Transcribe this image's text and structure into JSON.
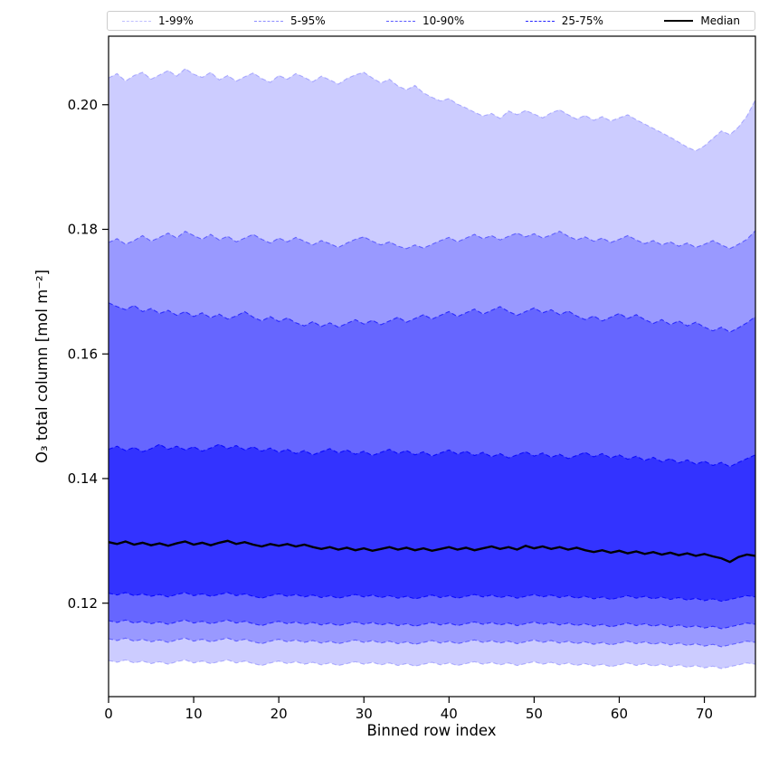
{
  "chart_data": {
    "type": "area",
    "title": "",
    "xlabel": "Binned row index",
    "ylabel": "O₃ total column [mol m⁻²]",
    "axes": {
      "x": {
        "lim": [
          0,
          76
        ],
        "ticks": [
          0,
          10,
          20,
          30,
          40,
          50,
          60,
          70
        ],
        "tick_labels": [
          "0",
          "10",
          "20",
          "30",
          "40",
          "50",
          "60",
          "70"
        ]
      },
      "y": {
        "lim": [
          0.105,
          0.211
        ],
        "ticks": [
          0.12,
          0.14,
          0.16,
          0.18,
          0.2
        ],
        "tick_labels": [
          "0.12",
          "0.14",
          "0.16",
          "0.18",
          "0.20"
        ]
      }
    },
    "legend": [
      {
        "label": "1-99%",
        "color": "rgba(0,0,255,0.25)",
        "dashed": true,
        "width": 1.2
      },
      {
        "label": "5-95%",
        "color": "rgba(0,0,255,0.45)",
        "dashed": true,
        "width": 1.2
      },
      {
        "label": "10-90%",
        "color": "rgba(0,0,255,0.65)",
        "dashed": true,
        "width": 1.2
      },
      {
        "label": "25-75%",
        "color": "rgba(0,0,255,0.85)",
        "dashed": true,
        "width": 1.2
      },
      {
        "label": "Median",
        "color": "#000000",
        "dashed": false,
        "width": 2.8
      }
    ],
    "bands": [
      {
        "name": "1-99%",
        "lower": "p01",
        "upper": "p99",
        "fill": "#ccccff",
        "edge": "rgba(0,0,255,0.25)"
      },
      {
        "name": "5-95%",
        "lower": "p05",
        "upper": "p95",
        "fill": "#9999ff",
        "edge": "rgba(0,0,255,0.45)"
      },
      {
        "name": "10-90%",
        "lower": "p10",
        "upper": "p90",
        "fill": "#6666ff",
        "edge": "rgba(0,0,255,0.65)"
      },
      {
        "name": "25-75%",
        "lower": "p25",
        "upper": "p75",
        "fill": "#3333ff",
        "edge": "rgba(0,0,255,0.85)"
      }
    ],
    "median": {
      "key": "p50",
      "color": "#000000",
      "width": 2.4
    },
    "series": {
      "x": [
        0,
        1,
        2,
        3,
        4,
        5,
        6,
        7,
        8,
        9,
        10,
        11,
        12,
        13,
        14,
        15,
        16,
        17,
        18,
        19,
        20,
        21,
        22,
        23,
        24,
        25,
        26,
        27,
        28,
        29,
        30,
        31,
        32,
        33,
        34,
        35,
        36,
        37,
        38,
        39,
        40,
        41,
        42,
        43,
        44,
        45,
        46,
        47,
        48,
        49,
        50,
        51,
        52,
        53,
        54,
        55,
        56,
        57,
        58,
        59,
        60,
        61,
        62,
        63,
        64,
        65,
        66,
        67,
        68,
        69,
        70,
        71,
        72,
        73,
        74,
        75,
        76
      ],
      "p99": [
        0.2043,
        0.205,
        0.2038,
        0.2047,
        0.2052,
        0.2041,
        0.2048,
        0.2055,
        0.2046,
        0.2058,
        0.2049,
        0.2044,
        0.2052,
        0.204,
        0.2047,
        0.2038,
        0.2045,
        0.2051,
        0.2042,
        0.2036,
        0.2047,
        0.2041,
        0.205,
        0.2044,
        0.2037,
        0.2046,
        0.204,
        0.2033,
        0.2042,
        0.2048,
        0.2052,
        0.2043,
        0.2035,
        0.2041,
        0.203,
        0.2024,
        0.2031,
        0.2019,
        0.2012,
        0.2006,
        0.201,
        0.2001,
        0.1995,
        0.1988,
        0.1982,
        0.1986,
        0.1978,
        0.199,
        0.1984,
        0.1991,
        0.1985,
        0.1979,
        0.1987,
        0.1992,
        0.1984,
        0.1977,
        0.1983,
        0.1975,
        0.1981,
        0.1974,
        0.1979,
        0.1984,
        0.1976,
        0.1969,
        0.1962,
        0.1955,
        0.1948,
        0.194,
        0.1932,
        0.1926,
        0.1934,
        0.1946,
        0.1958,
        0.1952,
        0.1964,
        0.1982,
        0.2008
      ],
      "p95": [
        0.1779,
        0.1785,
        0.1776,
        0.1782,
        0.179,
        0.1781,
        0.1787,
        0.1794,
        0.1786,
        0.1797,
        0.179,
        0.1784,
        0.1792,
        0.1783,
        0.1789,
        0.178,
        0.1786,
        0.1792,
        0.1784,
        0.1778,
        0.1786,
        0.178,
        0.1787,
        0.1781,
        0.1775,
        0.1782,
        0.1777,
        0.1771,
        0.1778,
        0.1784,
        0.1788,
        0.1781,
        0.1775,
        0.178,
        0.1773,
        0.1769,
        0.1775,
        0.177,
        0.1776,
        0.1782,
        0.1787,
        0.178,
        0.1786,
        0.1792,
        0.1785,
        0.179,
        0.1783,
        0.1789,
        0.1794,
        0.1788,
        0.1793,
        0.1786,
        0.1791,
        0.1797,
        0.1789,
        0.1783,
        0.1788,
        0.1781,
        0.1786,
        0.1779,
        0.1784,
        0.179,
        0.1783,
        0.1777,
        0.1782,
        0.1775,
        0.178,
        0.1773,
        0.1778,
        0.1771,
        0.1776,
        0.1782,
        0.1775,
        0.1769,
        0.1776,
        0.1784,
        0.1798
      ],
      "p90": [
        0.1682,
        0.1676,
        0.1671,
        0.1678,
        0.1668,
        0.1673,
        0.1665,
        0.167,
        0.1662,
        0.1668,
        0.166,
        0.1666,
        0.1658,
        0.1664,
        0.1656,
        0.1661,
        0.1668,
        0.1659,
        0.1653,
        0.166,
        0.1652,
        0.1658,
        0.165,
        0.1645,
        0.1652,
        0.1644,
        0.165,
        0.1643,
        0.1649,
        0.1655,
        0.1648,
        0.1654,
        0.1647,
        0.1653,
        0.1659,
        0.1651,
        0.1657,
        0.1663,
        0.1656,
        0.1662,
        0.1668,
        0.166,
        0.1666,
        0.1672,
        0.1664,
        0.167,
        0.1676,
        0.1668,
        0.1662,
        0.1668,
        0.1674,
        0.1666,
        0.1671,
        0.1663,
        0.1669,
        0.1661,
        0.1655,
        0.1661,
        0.1653,
        0.1659,
        0.1665,
        0.1657,
        0.1663,
        0.1655,
        0.1649,
        0.1655,
        0.1647,
        0.1653,
        0.1645,
        0.1651,
        0.1643,
        0.1637,
        0.1643,
        0.1635,
        0.1642,
        0.165,
        0.166
      ],
      "p75": [
        0.1447,
        0.1452,
        0.1445,
        0.145,
        0.1443,
        0.1448,
        0.1455,
        0.1447,
        0.1452,
        0.1446,
        0.1451,
        0.1444,
        0.1449,
        0.1455,
        0.1448,
        0.1453,
        0.1446,
        0.1451,
        0.1444,
        0.1449,
        0.1442,
        0.1447,
        0.144,
        0.1445,
        0.1438,
        0.1443,
        0.1448,
        0.1441,
        0.1446,
        0.1439,
        0.1444,
        0.1437,
        0.1442,
        0.1447,
        0.144,
        0.1445,
        0.1438,
        0.1443,
        0.1436,
        0.1441,
        0.1446,
        0.1439,
        0.1444,
        0.1437,
        0.1442,
        0.1435,
        0.144,
        0.1433,
        0.1438,
        0.1443,
        0.1436,
        0.1441,
        0.1434,
        0.1439,
        0.1432,
        0.1437,
        0.1442,
        0.1435,
        0.144,
        0.1433,
        0.1438,
        0.1431,
        0.1436,
        0.1429,
        0.1434,
        0.1427,
        0.1432,
        0.1425,
        0.143,
        0.1423,
        0.1428,
        0.1421,
        0.1426,
        0.1419,
        0.1426,
        0.1432,
        0.1438
      ],
      "p50": [
        0.1298,
        0.1295,
        0.1299,
        0.1294,
        0.1297,
        0.1293,
        0.1296,
        0.1292,
        0.1296,
        0.1299,
        0.1294,
        0.1297,
        0.1293,
        0.1297,
        0.13,
        0.1295,
        0.1298,
        0.1294,
        0.1291,
        0.1295,
        0.1292,
        0.1295,
        0.1291,
        0.1294,
        0.129,
        0.1287,
        0.129,
        0.1286,
        0.1289,
        0.1285,
        0.1288,
        0.1284,
        0.1287,
        0.129,
        0.1286,
        0.1289,
        0.1285,
        0.1288,
        0.1284,
        0.1287,
        0.129,
        0.1286,
        0.1289,
        0.1285,
        0.1288,
        0.1291,
        0.1287,
        0.129,
        0.1286,
        0.1292,
        0.1288,
        0.1291,
        0.1287,
        0.129,
        0.1286,
        0.1289,
        0.1285,
        0.1282,
        0.1285,
        0.1281,
        0.1284,
        0.128,
        0.1283,
        0.1279,
        0.1282,
        0.1278,
        0.1281,
        0.1277,
        0.128,
        0.1276,
        0.1279,
        0.1275,
        0.1272,
        0.1266,
        0.1274,
        0.1278,
        0.1276
      ],
      "p25": [
        0.1216,
        0.1213,
        0.1217,
        0.1212,
        0.1215,
        0.1211,
        0.1214,
        0.121,
        0.1214,
        0.1217,
        0.1212,
        0.1215,
        0.1211,
        0.1214,
        0.1217,
        0.1212,
        0.1215,
        0.1211,
        0.1208,
        0.1212,
        0.1215,
        0.1211,
        0.1214,
        0.121,
        0.1213,
        0.1209,
        0.1212,
        0.1208,
        0.1211,
        0.1214,
        0.121,
        0.1213,
        0.1209,
        0.1212,
        0.1208,
        0.1211,
        0.1207,
        0.121,
        0.1213,
        0.1209,
        0.1212,
        0.1208,
        0.1211,
        0.1214,
        0.121,
        0.1213,
        0.1209,
        0.1212,
        0.1208,
        0.1211,
        0.1214,
        0.121,
        0.1213,
        0.1209,
        0.1212,
        0.1208,
        0.1211,
        0.1207,
        0.121,
        0.1206,
        0.1209,
        0.1212,
        0.1208,
        0.1211,
        0.1207,
        0.121,
        0.1206,
        0.1209,
        0.1205,
        0.1208,
        0.1204,
        0.1207,
        0.1203,
        0.1206,
        0.1209,
        0.1212,
        0.121
      ],
      "p10": [
        0.1172,
        0.1169,
        0.1173,
        0.1168,
        0.1171,
        0.1167,
        0.117,
        0.1166,
        0.117,
        0.1173,
        0.1168,
        0.1171,
        0.1167,
        0.117,
        0.1173,
        0.1168,
        0.1171,
        0.1167,
        0.1164,
        0.1168,
        0.1171,
        0.1167,
        0.117,
        0.1166,
        0.1169,
        0.1165,
        0.1168,
        0.1164,
        0.1167,
        0.117,
        0.1166,
        0.1169,
        0.1165,
        0.1168,
        0.1164,
        0.1167,
        0.1163,
        0.1166,
        0.1169,
        0.1165,
        0.1168,
        0.1164,
        0.1167,
        0.117,
        0.1166,
        0.1169,
        0.1165,
        0.1168,
        0.1164,
        0.1167,
        0.117,
        0.1166,
        0.1169,
        0.1165,
        0.1168,
        0.1164,
        0.1167,
        0.1163,
        0.1166,
        0.1162,
        0.1165,
        0.1168,
        0.1164,
        0.1167,
        0.1163,
        0.1166,
        0.1162,
        0.1165,
        0.1161,
        0.1164,
        0.116,
        0.1163,
        0.1159,
        0.1162,
        0.1165,
        0.1168,
        0.1166
      ],
      "p05": [
        0.1143,
        0.114,
        0.1144,
        0.1139,
        0.1142,
        0.1138,
        0.1141,
        0.1137,
        0.1141,
        0.1144,
        0.1139,
        0.1142,
        0.1138,
        0.1141,
        0.1144,
        0.1139,
        0.1142,
        0.1138,
        0.1135,
        0.1139,
        0.1142,
        0.1138,
        0.1141,
        0.1137,
        0.114,
        0.1136,
        0.1139,
        0.1135,
        0.1138,
        0.1141,
        0.1137,
        0.114,
        0.1136,
        0.1139,
        0.1135,
        0.1138,
        0.1134,
        0.1137,
        0.114,
        0.1136,
        0.1139,
        0.1135,
        0.1138,
        0.1141,
        0.1137,
        0.114,
        0.1136,
        0.1139,
        0.1135,
        0.1138,
        0.1141,
        0.1137,
        0.114,
        0.1136,
        0.1139,
        0.1135,
        0.1138,
        0.1134,
        0.1137,
        0.1133,
        0.1136,
        0.1139,
        0.1135,
        0.1138,
        0.1134,
        0.1137,
        0.1133,
        0.1136,
        0.1132,
        0.1135,
        0.1131,
        0.1134,
        0.113,
        0.1133,
        0.1136,
        0.1139,
        0.1137
      ],
      "p01": [
        0.1108,
        0.1105,
        0.1109,
        0.1104,
        0.1107,
        0.1103,
        0.1106,
        0.1102,
        0.1106,
        0.1109,
        0.1104,
        0.1107,
        0.1103,
        0.1106,
        0.1109,
        0.1104,
        0.1107,
        0.1103,
        0.11,
        0.1104,
        0.1107,
        0.1103,
        0.1106,
        0.1102,
        0.1105,
        0.1101,
        0.1104,
        0.11,
        0.1103,
        0.1106,
        0.1102,
        0.1105,
        0.1101,
        0.1104,
        0.11,
        0.1103,
        0.1099,
        0.1102,
        0.1105,
        0.1101,
        0.1104,
        0.11,
        0.1103,
        0.1106,
        0.1102,
        0.1105,
        0.1101,
        0.1104,
        0.11,
        0.1103,
        0.1106,
        0.1102,
        0.1105,
        0.1101,
        0.1104,
        0.11,
        0.1103,
        0.1099,
        0.1102,
        0.1098,
        0.1101,
        0.1104,
        0.11,
        0.1103,
        0.1099,
        0.1102,
        0.1098,
        0.1101,
        0.1097,
        0.11,
        0.1096,
        0.1099,
        0.1095,
        0.1098,
        0.1101,
        0.1104,
        0.1102
      ]
    }
  }
}
